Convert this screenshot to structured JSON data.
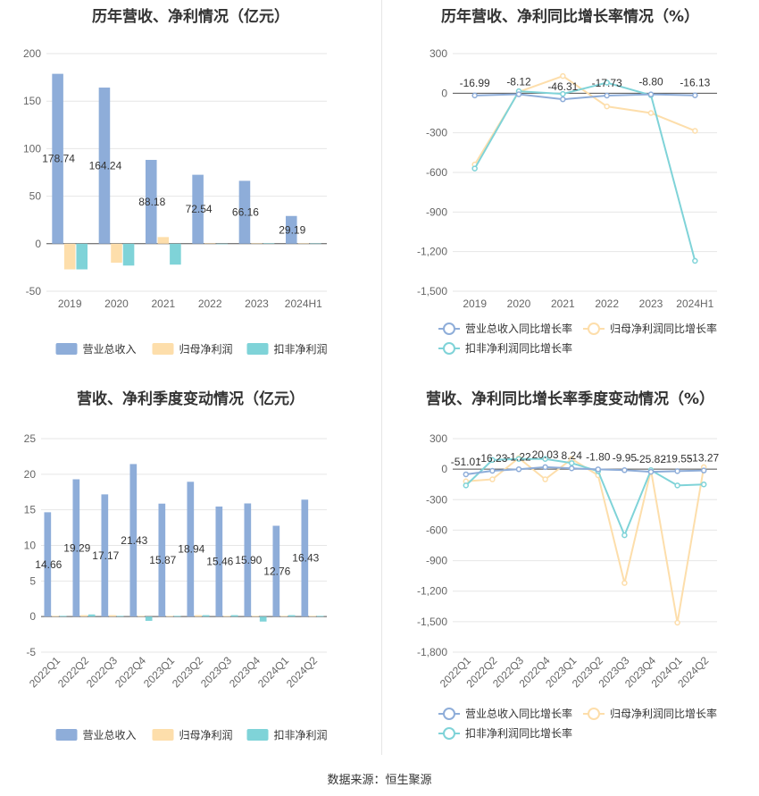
{
  "footer": {
    "source": "数据来源：恒生聚源"
  },
  "colors": {
    "revenue": "#8eadd9",
    "net_profit": "#fddeab",
    "deducted_profit": "#7fd3d8",
    "revenue_line": "#8eadd9",
    "net_line": "#fddeab",
    "deducted_line": "#7fd3d8"
  },
  "chart_data": [
    {
      "id": "annual-amounts",
      "type": "bar",
      "title": "历年营收、净利情况（亿元）",
      "categories": [
        "2019",
        "2020",
        "2021",
        "2022",
        "2023",
        "2024H1"
      ],
      "ylim": [
        -50,
        200
      ],
      "yticks": [
        200,
        150,
        100,
        50,
        0,
        -50
      ],
      "series": [
        {
          "name": "营业总收入",
          "values": [
            178.74,
            164.24,
            88.18,
            72.54,
            66.16,
            29.19
          ],
          "labels": [
            "178.74",
            "164.24",
            "88.18",
            "72.54",
            "66.16",
            "29.19"
          ]
        },
        {
          "name": "归母净利润",
          "values": [
            -27,
            -20,
            7,
            0.5,
            0.4,
            0.3
          ]
        },
        {
          "name": "扣非净利润",
          "values": [
            -27,
            -23,
            -22,
            -0.5,
            0.3,
            0.2
          ]
        }
      ],
      "legend": "bottom"
    },
    {
      "id": "annual-growth",
      "type": "line",
      "title": "历年营收、净利同比增长率情况（%）",
      "categories": [
        "2019",
        "2020",
        "2021",
        "2022",
        "2023",
        "2024H1"
      ],
      "ylim": [
        -1500,
        300
      ],
      "yticks": [
        300,
        0,
        -300,
        -600,
        -900,
        -1200,
        -1500
      ],
      "ytick_labels": [
        "300",
        "0",
        "-300",
        "-600",
        "-900",
        "-1,200",
        "-1,500"
      ],
      "series": [
        {
          "name": "营业总收入同比增长率",
          "values": [
            -16.99,
            -8.12,
            -46.31,
            -17.73,
            -8.8,
            -16.13
          ],
          "labels": [
            "-16.99",
            "-8.12",
            "-46.31",
            "-17.73",
            "-8.80",
            "-16.13"
          ]
        },
        {
          "name": "归母净利润同比增长率",
          "values": [
            -540,
            10,
            130,
            -100,
            -150,
            -285
          ]
        },
        {
          "name": "扣非净利润同比增长率",
          "values": [
            -570,
            15,
            -5,
            80,
            -15,
            -1270
          ]
        }
      ],
      "legend": "bottom"
    },
    {
      "id": "quarterly-amounts",
      "type": "bar",
      "title": "营收、净利季度变动情况（亿元）",
      "categories": [
        "2022Q1",
        "2022Q2",
        "2022Q3",
        "2022Q4",
        "2023Q1",
        "2023Q2",
        "2023Q3",
        "2023Q4",
        "2024Q1",
        "2024Q2"
      ],
      "ylim": [
        -5,
        25
      ],
      "yticks": [
        25,
        20,
        15,
        10,
        5,
        0,
        -5
      ],
      "series": [
        {
          "name": "营业总收入",
          "values": [
            14.66,
            19.29,
            17.17,
            21.43,
            15.87,
            18.94,
            15.46,
            15.9,
            12.76,
            16.43
          ],
          "labels": [
            "14.66",
            "19.29",
            "17.17",
            "21.43",
            "15.87",
            "18.94",
            "15.46",
            "15.90",
            "12.76",
            "16.43"
          ]
        },
        {
          "name": "归母净利润",
          "values": [
            0.1,
            0.2,
            0.2,
            0.1,
            0.1,
            0.2,
            0.1,
            0.1,
            0.1,
            0.1
          ]
        },
        {
          "name": "扣非净利润",
          "values": [
            0.1,
            0.3,
            0.1,
            -0.6,
            0.1,
            0.2,
            0.2,
            -0.7,
            0.2,
            0.1
          ]
        }
      ],
      "legend": "bottom"
    },
    {
      "id": "quarterly-growth",
      "type": "line",
      "title": "营收、净利同比增长率季度变动情况（%）",
      "categories": [
        "2022Q1",
        "2022Q2",
        "2022Q3",
        "2022Q4",
        "2023Q1",
        "2023Q2",
        "2023Q3",
        "2023Q4",
        "2024Q1",
        "2024Q2"
      ],
      "ylim": [
        -1800,
        300
      ],
      "yticks": [
        300,
        0,
        -300,
        -600,
        -900,
        -1200,
        -1500,
        -1800
      ],
      "ytick_labels": [
        "300",
        "0",
        "-300",
        "-600",
        "-900",
        "-1,200",
        "-1,500",
        "-1,800"
      ],
      "series": [
        {
          "name": "营业总收入同比增长率",
          "values": [
            -51.01,
            -16.23,
            -1.22,
            20.03,
            8.24,
            -1.8,
            -9.95,
            -25.82,
            -19.55,
            -13.27
          ],
          "labels": [
            "-51.01",
            "-16.23",
            "-1.22",
            "20.03",
            "8.24",
            "-1.80",
            "-9.95",
            "-25.82",
            "-19.55",
            "-13.27"
          ]
        },
        {
          "name": "归母净利润同比增长率",
          "values": [
            -120,
            -100,
            110,
            -100,
            100,
            -60,
            -1120,
            -10,
            -1510,
            20
          ]
        },
        {
          "name": "扣非净利润同比增长率",
          "values": [
            -160,
            90,
            100,
            100,
            60,
            -20,
            -650,
            -10,
            -160,
            -150
          ]
        }
      ],
      "legend": "bottom"
    }
  ]
}
